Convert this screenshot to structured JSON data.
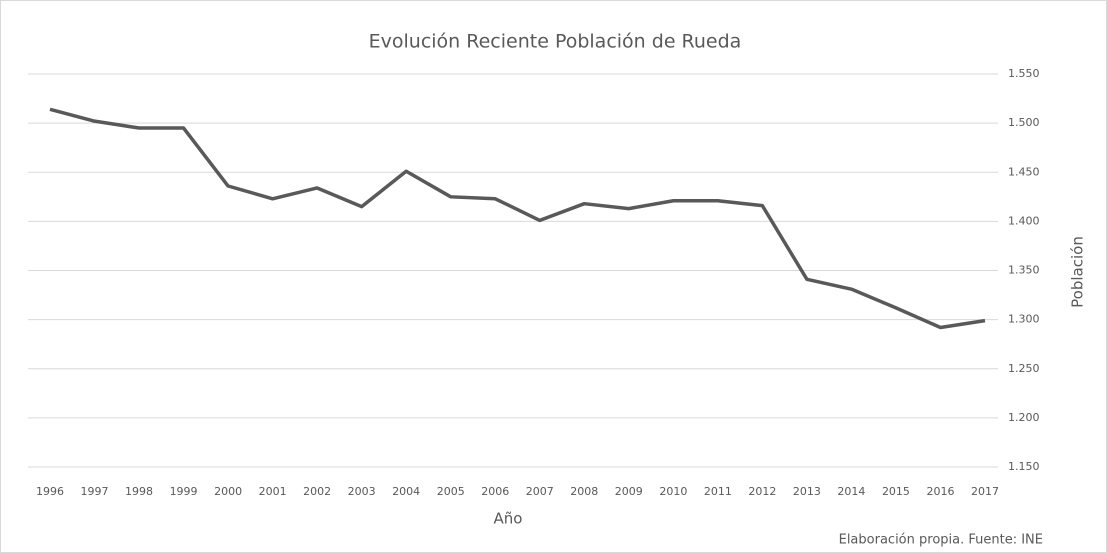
{
  "chart_data": {
    "type": "line",
    "title": "Evolución Reciente Población de Rueda",
    "x_label": "Año",
    "y_label": "Población",
    "note": "Elaboración propia. Fuente: INE",
    "categories": [
      "1996",
      "1997",
      "1998",
      "1999",
      "2000",
      "2001",
      "2002",
      "2003",
      "2004",
      "2005",
      "2006",
      "2007",
      "2008",
      "2009",
      "2010",
      "2011",
      "2012",
      "2013",
      "2014",
      "2015",
      "2016",
      "2017"
    ],
    "values": [
      1514,
      1502,
      1495,
      1495,
      1436,
      1423,
      1434,
      1415,
      1451,
      1425,
      1423,
      1401,
      1418,
      1413,
      1421,
      1421,
      1416,
      1341,
      1331,
      1312,
      1292,
      1299
    ],
    "color": "#595959",
    "ylim": [
      1150,
      1550
    ],
    "yticks": [
      {
        "value": 1150,
        "label": "1.150"
      },
      {
        "value": 1200,
        "label": "1.200"
      },
      {
        "value": 1250,
        "label": "1.250"
      },
      {
        "value": 1300,
        "label": "1.300"
      },
      {
        "value": 1350,
        "label": "1.350"
      },
      {
        "value": 1400,
        "label": "1.400"
      },
      {
        "value": 1450,
        "label": "1.450"
      },
      {
        "value": 1500,
        "label": "1.500"
      },
      {
        "value": 1550,
        "label": "1.550"
      }
    ],
    "grid": true
  }
}
